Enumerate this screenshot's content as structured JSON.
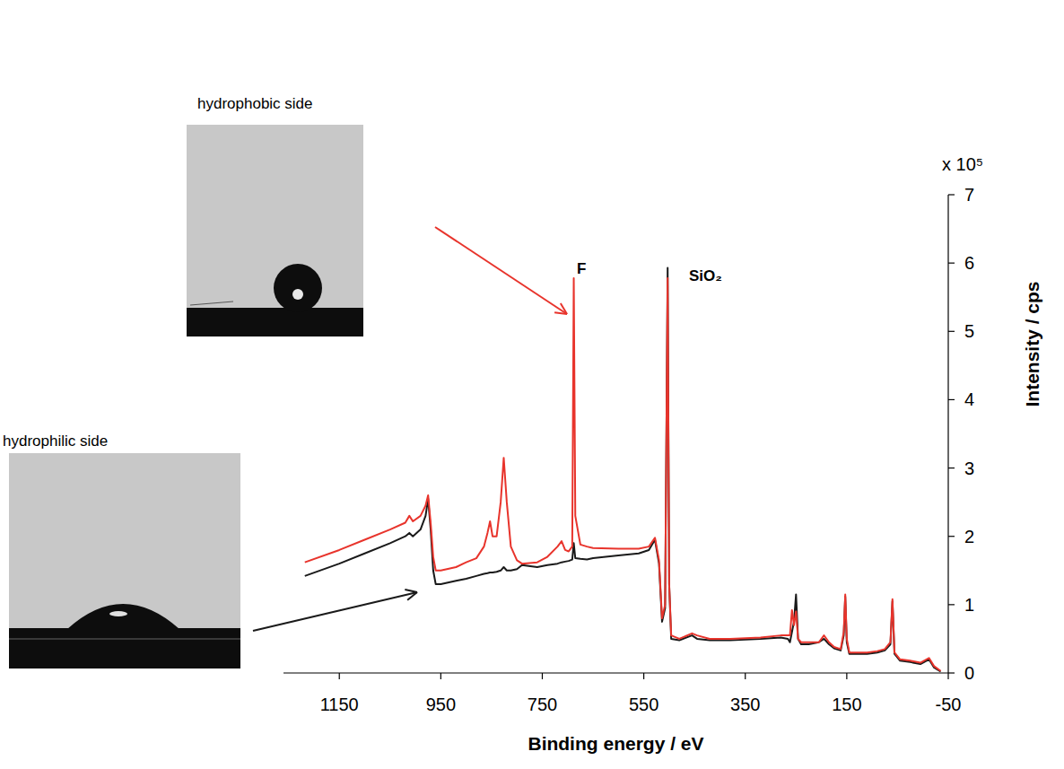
{
  "chart_data": {
    "type": "line",
    "x_label": "Binding energy / eV",
    "y_label": "Intensity / cps",
    "y_multiplier": "x 10⁵",
    "xlim": [
      1260,
      -50
    ],
    "xticks": [
      1150,
      950,
      750,
      550,
      350,
      150,
      -50
    ],
    "ylim": [
      0,
      7
    ],
    "yticks": [
      0,
      1,
      2,
      3,
      4,
      5,
      6,
      7
    ],
    "grid": false,
    "x": [
      1218,
      1150,
      1100,
      1050,
      1020,
      1012,
      1005,
      990,
      980,
      975,
      970,
      965,
      960,
      950,
      920,
      900,
      880,
      865,
      858,
      853,
      848,
      840,
      832,
      826,
      820,
      812,
      800,
      790,
      760,
      740,
      720,
      712,
      705,
      698,
      691,
      688,
      685,
      675,
      662,
      650,
      600,
      560,
      540,
      528,
      520,
      514,
      508,
      503,
      500,
      496,
      480,
      455,
      445,
      420,
      380,
      320,
      280,
      266,
      262,
      258,
      254,
      250,
      246,
      240,
      225,
      205,
      195,
      185,
      175,
      162,
      156,
      153,
      150,
      145,
      130,
      110,
      90,
      75,
      64,
      60,
      56,
      45,
      25,
      5,
      -12,
      -22,
      -35
    ],
    "series": [
      {
        "name": "hydrophilic side",
        "color": "#1a1a1a",
        "values": [
          1.42,
          1.6,
          1.75,
          1.9,
          2.0,
          2.05,
          2.0,
          2.1,
          2.3,
          2.55,
          2.1,
          1.5,
          1.3,
          1.3,
          1.35,
          1.38,
          1.42,
          1.45,
          1.46,
          1.47,
          1.47,
          1.48,
          1.5,
          1.55,
          1.5,
          1.5,
          1.52,
          1.58,
          1.55,
          1.58,
          1.6,
          1.62,
          1.63,
          1.64,
          1.66,
          1.9,
          1.68,
          1.67,
          1.66,
          1.68,
          1.72,
          1.75,
          1.8,
          1.95,
          1.6,
          0.75,
          0.95,
          5.93,
          1.3,
          0.5,
          0.48,
          0.55,
          0.5,
          0.48,
          0.48,
          0.5,
          0.52,
          0.5,
          0.45,
          0.6,
          0.75,
          1.15,
          0.5,
          0.42,
          0.42,
          0.45,
          0.5,
          0.42,
          0.36,
          0.33,
          0.55,
          1.12,
          0.45,
          0.28,
          0.28,
          0.28,
          0.3,
          0.33,
          0.42,
          1.05,
          0.28,
          0.18,
          0.16,
          0.13,
          0.2,
          0.08,
          0.02
        ]
      },
      {
        "name": "hydrophobic side",
        "color": "#e8342c",
        "values": [
          1.62,
          1.8,
          1.95,
          2.1,
          2.2,
          2.3,
          2.22,
          2.3,
          2.45,
          2.6,
          2.2,
          1.7,
          1.5,
          1.5,
          1.55,
          1.62,
          1.68,
          1.85,
          2.05,
          2.22,
          2.0,
          2.0,
          2.5,
          3.15,
          2.5,
          1.85,
          1.65,
          1.6,
          1.62,
          1.7,
          1.85,
          1.93,
          1.8,
          1.78,
          1.85,
          5.78,
          2.3,
          1.88,
          1.85,
          1.83,
          1.82,
          1.82,
          1.85,
          1.98,
          1.65,
          0.8,
          1.0,
          5.78,
          1.3,
          0.55,
          0.5,
          0.58,
          0.55,
          0.5,
          0.5,
          0.52,
          0.55,
          0.55,
          0.55,
          0.92,
          0.7,
          0.9,
          0.5,
          0.45,
          0.45,
          0.45,
          0.55,
          0.45,
          0.38,
          0.35,
          0.6,
          1.15,
          0.5,
          0.3,
          0.3,
          0.3,
          0.32,
          0.35,
          0.45,
          1.08,
          0.3,
          0.2,
          0.18,
          0.15,
          0.22,
          0.1,
          0.03
        ]
      }
    ],
    "annotations": [
      {
        "text": "F",
        "x": 682,
        "y": 5.9
      },
      {
        "text": "SiO₂",
        "x": 461,
        "y": 5.8
      }
    ]
  }
}
